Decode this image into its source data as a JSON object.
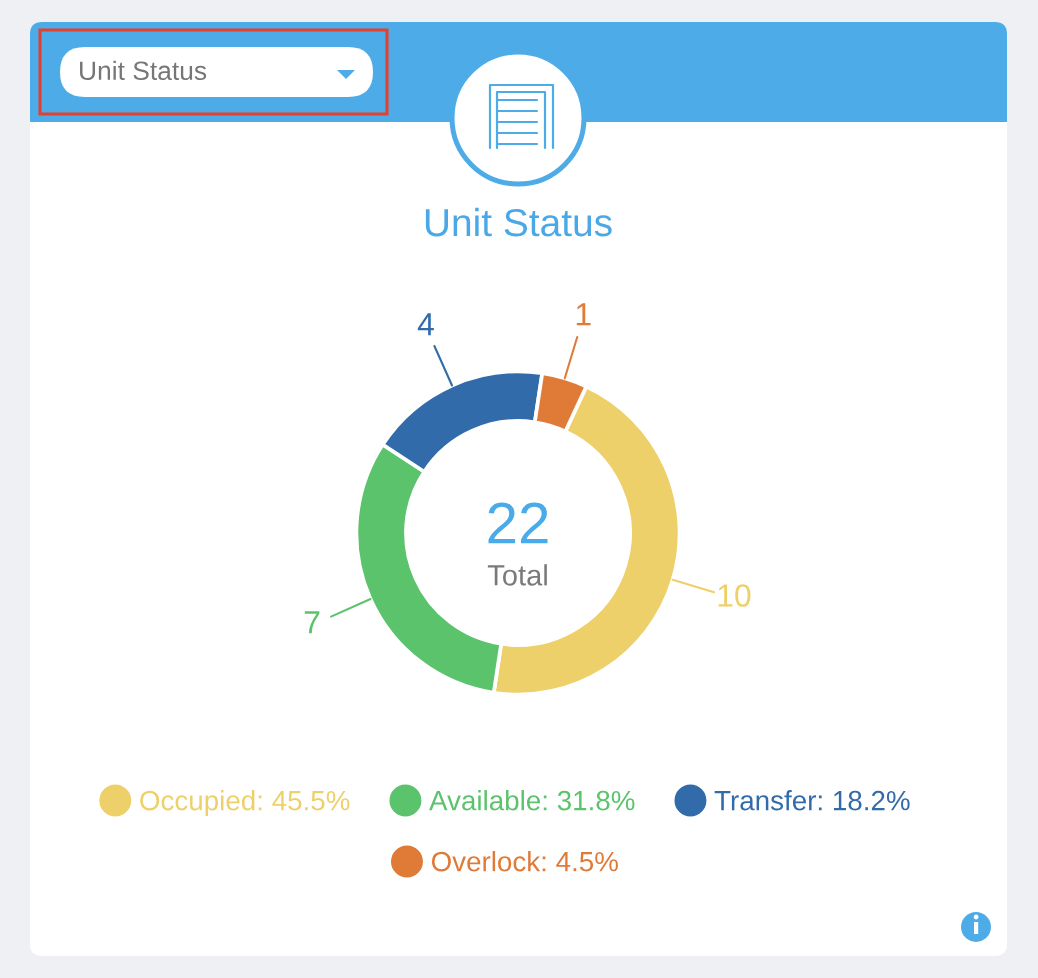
{
  "chart_data": {
    "type": "donut",
    "title": "Unit Status",
    "categories": [
      "Occupied: 45.5%",
      "Available: 31.8%",
      "Transfer: 18.2%",
      "Overlock: 4.5%"
    ],
    "values": [
      10,
      7,
      4,
      1
    ],
    "colors": [
      "#eed06a",
      "#5bc36c",
      "#316baa",
      "#e07a37"
    ],
    "data_labels": true,
    "legend": "bottom",
    "annotations": [
      "22",
      "Total",
      "Unit Status"
    ]
  }
}
